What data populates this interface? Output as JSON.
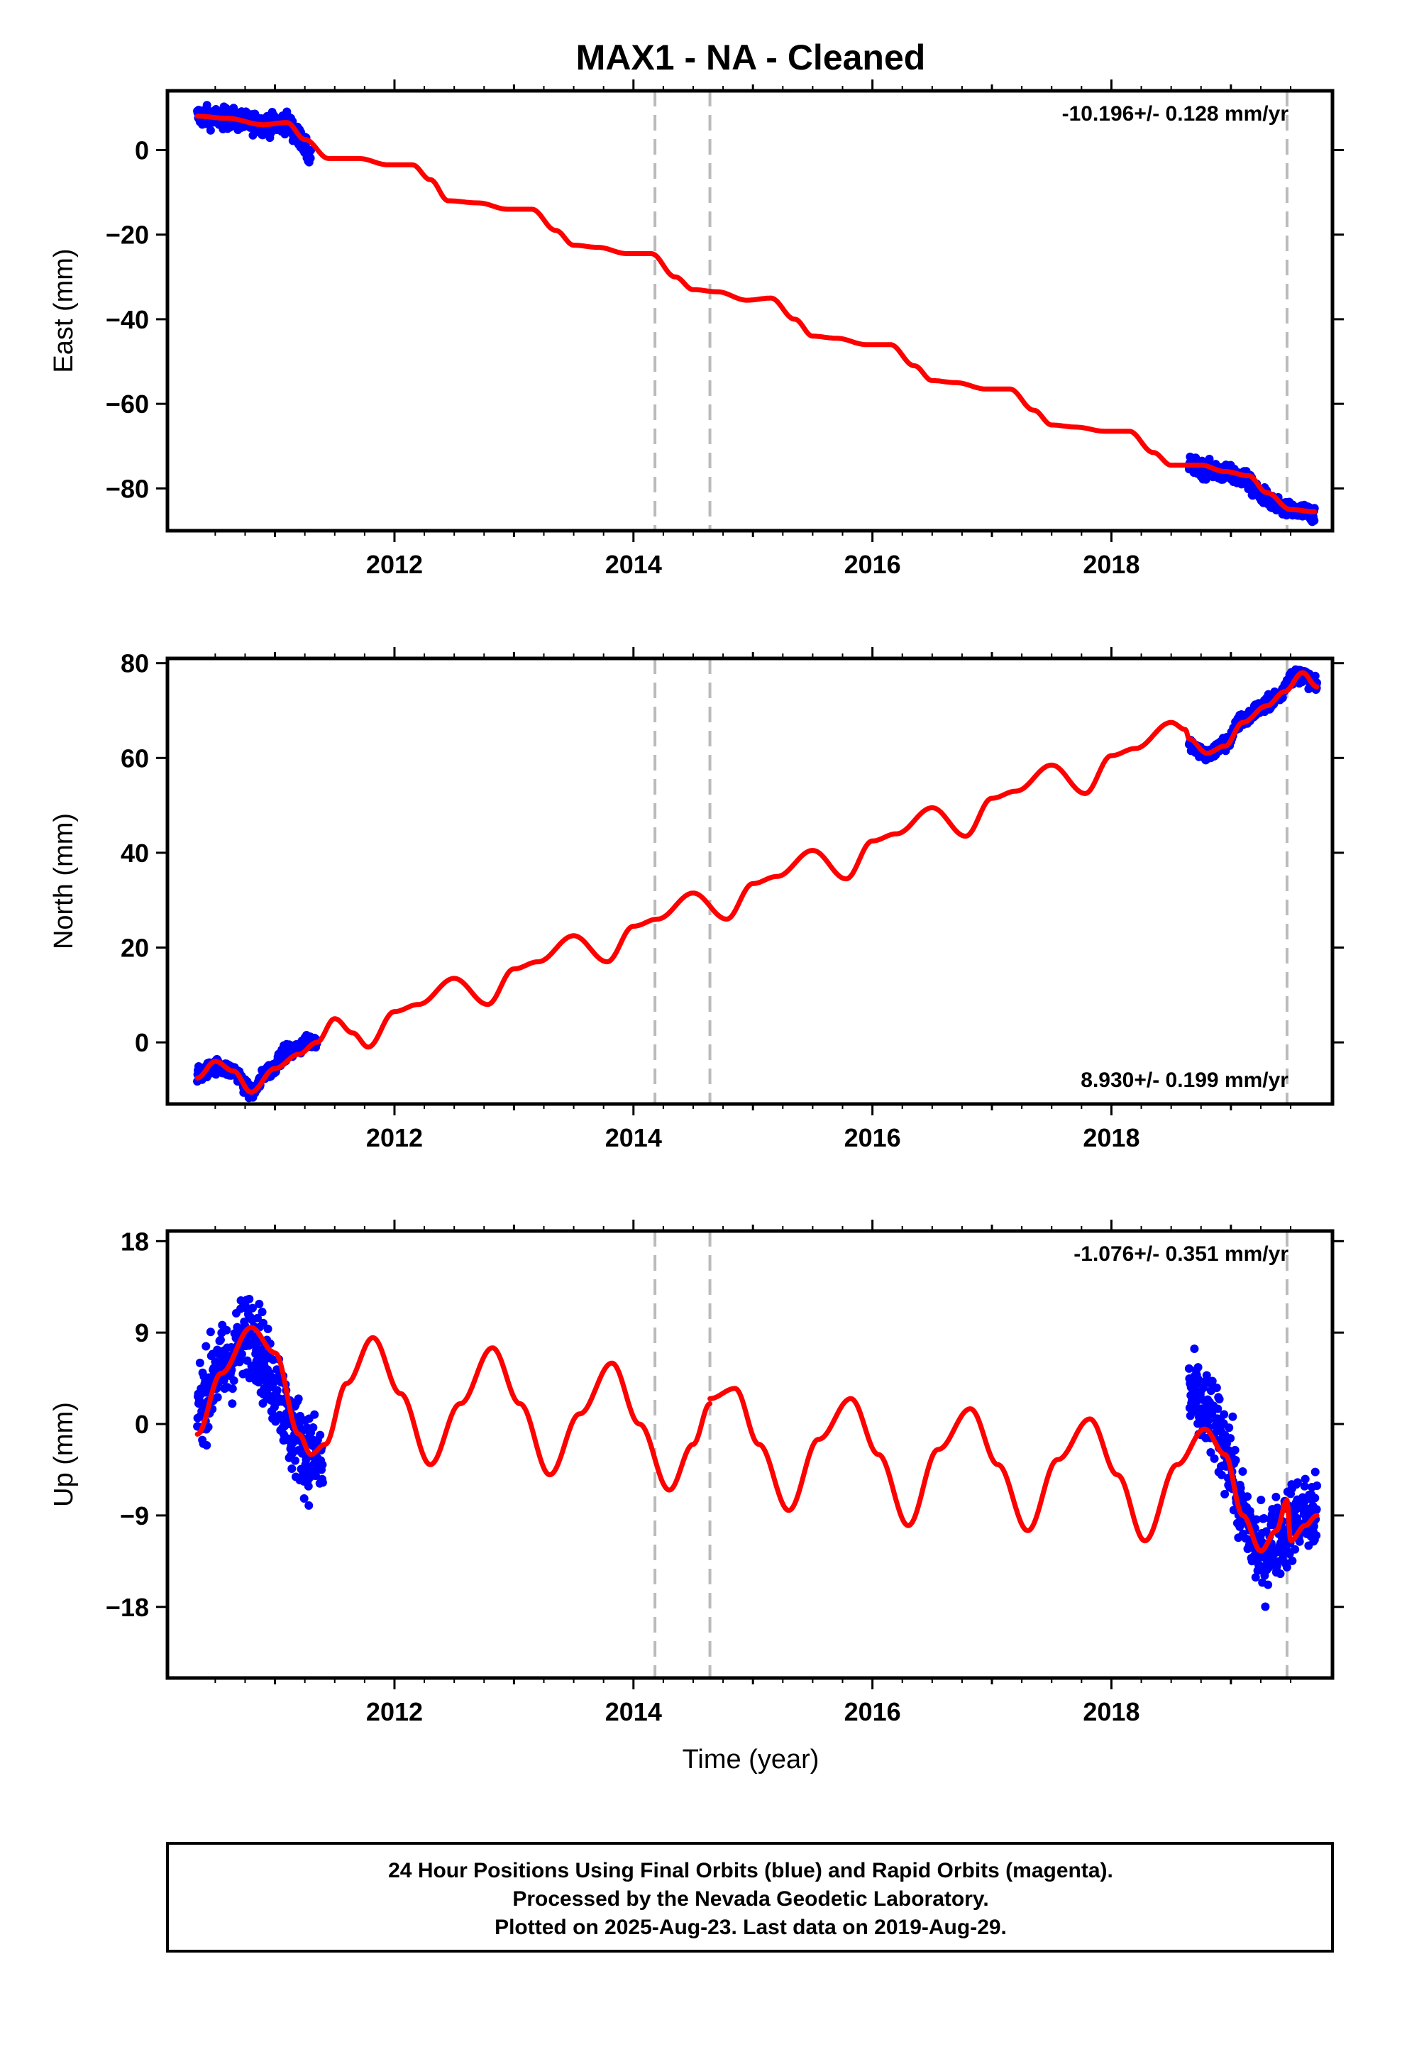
{
  "title": "MAX1  - NA - Cleaned",
  "xlabel": "Time (year)",
  "footer": {
    "line1": "24 Hour Positions Using Final Orbits (blue) and Rapid Orbits (magenta).",
    "line2": "Processed by the Nevada Geodetic Laboratory.",
    "line3": "Plotted on 2025-Aug-23. Last data on 2019-Aug-29."
  },
  "colors": {
    "data": "#0000ff",
    "model": "#ff0000",
    "breaks": "#bbbbbb",
    "frame": "#000000"
  },
  "chart_data": [
    {
      "type": "scatter",
      "ylabel": "East (mm)",
      "rate_label": "-10.196+/- 0.128 mm/yr",
      "rate_position": "top-right",
      "xlim": [
        2010.1,
        2019.85
      ],
      "ylim": [
        -90,
        14
      ],
      "xticks": [
        2012,
        2014,
        2016,
        2018
      ],
      "yticks": [
        0,
        -20,
        -40,
        -60,
        -80
      ],
      "ytick_labels": [
        "0",
        "−20",
        "−40",
        "−60",
        "−80"
      ],
      "breaks": [
        2014.18,
        2014.64,
        2019.47
      ],
      "data_ranges": [
        {
          "start": 2010.35,
          "end": 2011.3,
          "knots": [
            [
              2010.35,
              8
            ],
            [
              2010.6,
              7.5
            ],
            [
              2010.8,
              6.5
            ],
            [
              2010.95,
              6
            ],
            [
              2011.1,
              6.5
            ],
            [
              2011.2,
              3
            ],
            [
              2011.3,
              -1.5
            ]
          ],
          "scatter": 2.2
        },
        {
          "start": 2018.65,
          "end": 2019.7,
          "knots": [
            [
              2018.65,
              -74.5
            ],
            [
              2018.8,
              -75.5
            ],
            [
              2018.95,
              -76.5
            ],
            [
              2019.1,
              -77.5
            ],
            [
              2019.25,
              -81.5
            ],
            [
              2019.4,
              -84.5
            ],
            [
              2019.55,
              -85.5
            ],
            [
              2019.7,
              -86
            ]
          ],
          "scatter": 1.8
        }
      ],
      "model": {
        "knots": [
          [
            2010.35,
            8
          ],
          [
            2010.6,
            7.5
          ],
          [
            2010.9,
            6
          ],
          [
            2011.1,
            6.5
          ],
          [
            2011.25,
            2.5
          ],
          [
            2011.45,
            -2
          ],
          [
            2011.7,
            -2
          ],
          [
            2011.95,
            -3.5
          ],
          [
            2012.15,
            -3.5
          ],
          [
            2012.3,
            -7
          ],
          [
            2012.45,
            -12
          ],
          [
            2012.7,
            -12.5
          ],
          [
            2012.95,
            -14
          ],
          [
            2013.15,
            -14
          ],
          [
            2013.35,
            -19
          ],
          [
            2013.5,
            -22.5
          ],
          [
            2013.7,
            -23
          ],
          [
            2013.95,
            -24.5
          ],
          [
            2014.15,
            -24.5
          ],
          [
            2014.35,
            -30
          ],
          [
            2014.5,
            -33
          ],
          [
            2014.7,
            -33.5
          ],
          [
            2014.95,
            -35.5
          ],
          [
            2015.15,
            -35
          ],
          [
            2015.35,
            -40
          ],
          [
            2015.5,
            -44
          ],
          [
            2015.7,
            -44.5
          ],
          [
            2015.95,
            -46
          ],
          [
            2016.15,
            -46
          ],
          [
            2016.35,
            -51
          ],
          [
            2016.5,
            -54.5
          ],
          [
            2016.7,
            -55
          ],
          [
            2016.95,
            -56.5
          ],
          [
            2017.15,
            -56.5
          ],
          [
            2017.35,
            -61.5
          ],
          [
            2017.5,
            -65
          ],
          [
            2017.7,
            -65.5
          ],
          [
            2017.95,
            -66.5
          ],
          [
            2018.15,
            -66.5
          ],
          [
            2018.35,
            -71.5
          ],
          [
            2018.5,
            -74.5
          ],
          [
            2018.75,
            -74.5
          ],
          [
            2018.95,
            -76
          ],
          [
            2019.15,
            -77
          ],
          [
            2019.3,
            -81
          ],
          [
            2019.5,
            -85
          ],
          [
            2019.7,
            -85.5
          ]
        ]
      }
    },
    {
      "type": "scatter",
      "ylabel": "North (mm)",
      "rate_label": "8.930+/- 0.199 mm/yr",
      "rate_position": "bottom-right",
      "xlim": [
        2010.1,
        2019.85
      ],
      "ylim": [
        -13,
        81
      ],
      "xticks": [
        2012,
        2014,
        2016,
        2018
      ],
      "yticks": [
        80,
        60,
        40,
        20,
        0
      ],
      "ytick_labels": [
        "80",
        "60",
        "40",
        "20",
        "0"
      ],
      "breaks": [
        2014.18,
        2014.64,
        2019.47
      ],
      "data_ranges": [
        {
          "start": 2010.35,
          "end": 2011.35,
          "knots": [
            [
              2010.35,
              -7
            ],
            [
              2010.5,
              -5
            ],
            [
              2010.65,
              -6
            ],
            [
              2010.8,
              -10.5
            ],
            [
              2010.95,
              -6
            ],
            [
              2011.1,
              -2
            ],
            [
              2011.35,
              0.5
            ]
          ],
          "scatter": 1.4
        },
        {
          "start": 2018.65,
          "end": 2019.72,
          "knots": [
            [
              2018.65,
              63
            ],
            [
              2018.8,
              60.5
            ],
            [
              2018.95,
              63
            ],
            [
              2019.1,
              68
            ],
            [
              2019.25,
              70.5
            ],
            [
              2019.4,
              73
            ],
            [
              2019.5,
              77
            ],
            [
              2019.6,
              77.5
            ],
            [
              2019.72,
              75
            ]
          ],
          "scatter": 1.4
        }
      ],
      "model": {
        "knots": [
          [
            2010.35,
            -7.5
          ],
          [
            2010.5,
            -4
          ],
          [
            2010.65,
            -6
          ],
          [
            2010.8,
            -10.5
          ],
          [
            2011.0,
            -5.5
          ],
          [
            2011.2,
            -2.5
          ],
          [
            2011.35,
            0
          ],
          [
            2011.5,
            5
          ],
          [
            2011.65,
            2
          ],
          [
            2011.78,
            -1
          ],
          [
            2012.0,
            6.5
          ],
          [
            2012.2,
            8
          ],
          [
            2012.5,
            13.5
          ],
          [
            2012.78,
            8
          ],
          [
            2013.0,
            15.5
          ],
          [
            2013.2,
            17
          ],
          [
            2013.5,
            22.5
          ],
          [
            2013.78,
            17
          ],
          [
            2014.0,
            24.5
          ],
          [
            2014.2,
            26
          ],
          [
            2014.5,
            31.5
          ],
          [
            2014.78,
            26
          ],
          [
            2015.0,
            33.5
          ],
          [
            2015.2,
            35
          ],
          [
            2015.5,
            40.5
          ],
          [
            2015.78,
            34.5
          ],
          [
            2016.0,
            42.5
          ],
          [
            2016.2,
            44
          ],
          [
            2016.5,
            49.5
          ],
          [
            2016.78,
            43.5
          ],
          [
            2017.0,
            51.5
          ],
          [
            2017.2,
            53
          ],
          [
            2017.5,
            58.5
          ],
          [
            2017.78,
            52.5
          ],
          [
            2018.0,
            60.5
          ],
          [
            2018.2,
            62
          ],
          [
            2018.5,
            67.5
          ],
          [
            2018.62,
            66
          ],
          [
            2018.65,
            64
          ],
          [
            2018.8,
            61
          ],
          [
            2018.95,
            62.5
          ],
          [
            2019.1,
            67.5
          ],
          [
            2019.3,
            71
          ],
          [
            2019.45,
            74
          ],
          [
            2019.6,
            78
          ],
          [
            2019.72,
            75
          ]
        ]
      }
    },
    {
      "type": "scatter",
      "ylabel": "Up (mm)",
      "rate_label": "-1.076+/- 0.351 mm/yr",
      "rate_position": "top-right",
      "xlim": [
        2010.1,
        2019.85
      ],
      "ylim": [
        -25,
        19
      ],
      "xticks": [
        2012,
        2014,
        2016,
        2018
      ],
      "yticks": [
        18,
        9,
        0,
        -9,
        -18
      ],
      "ytick_labels": [
        "18",
        "9",
        "0",
        "−9",
        "−18"
      ],
      "breaks": [
        2014.18,
        2014.64,
        2019.47
      ],
      "data_ranges": [
        {
          "start": 2010.35,
          "end": 2011.4,
          "knots": [
            [
              2010.35,
              2
            ],
            [
              2010.55,
              5.5
            ],
            [
              2010.8,
              9
            ],
            [
              2011.0,
              4
            ],
            [
              2011.15,
              -1
            ],
            [
              2011.3,
              -3
            ],
            [
              2011.4,
              -4
            ]
          ],
          "scatter": 3.8
        },
        {
          "start": 2018.65,
          "end": 2019.72,
          "knots": [
            [
              2018.65,
              3
            ],
            [
              2018.8,
              1
            ],
            [
              2018.95,
              -2
            ],
            [
              2019.1,
              -9
            ],
            [
              2019.25,
              -13
            ],
            [
              2019.4,
              -11
            ],
            [
              2019.55,
              -9
            ],
            [
              2019.72,
              -9
            ]
          ],
          "scatter": 3.6
        }
      ],
      "model": {
        "segments": [
          [
            [
              2010.35,
              -1
            ],
            [
              2010.55,
              5
            ],
            [
              2010.8,
              9.5
            ],
            [
              2011.0,
              7
            ],
            [
              2011.2,
              -1
            ],
            [
              2011.3,
              -3
            ],
            [
              2011.42,
              -2
            ],
            [
              2011.6,
              4
            ],
            [
              2011.82,
              8.5
            ],
            [
              2012.05,
              3
            ],
            [
              2012.3,
              -4
            ],
            [
              2012.55,
              2
            ],
            [
              2012.82,
              7.5
            ],
            [
              2013.05,
              2
            ],
            [
              2013.3,
              -5
            ],
            [
              2013.55,
              1
            ],
            [
              2013.82,
              6
            ],
            [
              2014.05,
              0
            ],
            [
              2014.3,
              -6.5
            ],
            [
              2014.5,
              -2
            ],
            [
              2014.64,
              2
            ]
          ],
          [
            [
              2014.64,
              2.5
            ],
            [
              2014.85,
              3.5
            ],
            [
              2015.05,
              -2
            ],
            [
              2015.3,
              -8.5
            ],
            [
              2015.55,
              -1.5
            ],
            [
              2015.82,
              2.5
            ],
            [
              2016.05,
              -3
            ],
            [
              2016.3,
              -10
            ],
            [
              2016.55,
              -2.5
            ],
            [
              2016.82,
              1.5
            ],
            [
              2017.05,
              -4
            ],
            [
              2017.3,
              -10.5
            ],
            [
              2017.55,
              -3.5
            ],
            [
              2017.82,
              0.5
            ],
            [
              2018.05,
              -5
            ],
            [
              2018.28,
              -11.5
            ],
            [
              2018.55,
              -4
            ],
            [
              2018.78,
              -0.5
            ],
            [
              2018.95,
              -3
            ],
            [
              2019.1,
              -9
            ],
            [
              2019.25,
              -12.5
            ],
            [
              2019.38,
              -10.5
            ],
            [
              2019.47,
              -7.5
            ],
            [
              2019.5,
              -11.5
            ],
            [
              2019.62,
              -10
            ],
            [
              2019.72,
              -9
            ]
          ]
        ]
      }
    }
  ]
}
